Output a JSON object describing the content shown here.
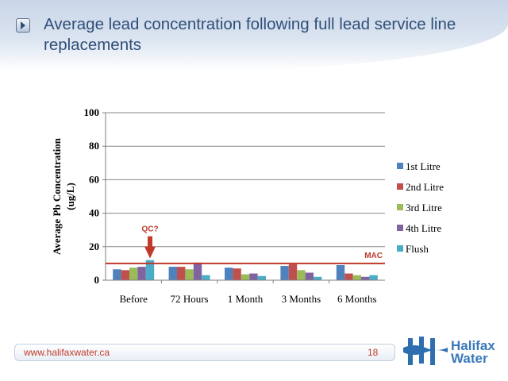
{
  "slide": {
    "title": "Average lead concentration following full lead service line replacements",
    "footer_url": "www.halifaxwater.ca",
    "page_number": "18",
    "logo_lines": [
      "Halifax",
      "Water"
    ]
  },
  "colors": {
    "title": "#2f4f7a",
    "mac_line": "#c0392b",
    "annotation": "#c0392b"
  },
  "chart_data": {
    "type": "bar",
    "title": "",
    "xlabel": "",
    "ylabel": "Average Pb Concentration (ug/L)",
    "ylim": [
      0,
      100
    ],
    "yticks": [
      0,
      20,
      40,
      60,
      80,
      100
    ],
    "grid": true,
    "legend_position": "right",
    "categories": [
      "Before",
      "72 Hours",
      "1 Month",
      "3 Months",
      "6 Months"
    ],
    "series": [
      {
        "name": "1st Litre",
        "color": "#4f81bd",
        "values": [
          6.5,
          8,
          7.5,
          8.5,
          9
        ]
      },
      {
        "name": "2nd Litre",
        "color": "#c0504d",
        "values": [
          6,
          8,
          7,
          9.5,
          4
        ]
      },
      {
        "name": "3rd Litre",
        "color": "#9bbb59",
        "values": [
          7.5,
          6.5,
          3.5,
          6,
          3
        ]
      },
      {
        "name": "4th Litre",
        "color": "#8064a2",
        "values": [
          8,
          10.5,
          4,
          4.5,
          2
        ]
      },
      {
        "name": "Flush",
        "color": "#4bacc6",
        "values": [
          12,
          3,
          2.5,
          2,
          3
        ]
      }
    ],
    "reference_line": {
      "label": "MAC",
      "value": 10
    },
    "annotation": {
      "label": "QC?",
      "category": "Before",
      "series": "Flush"
    }
  }
}
